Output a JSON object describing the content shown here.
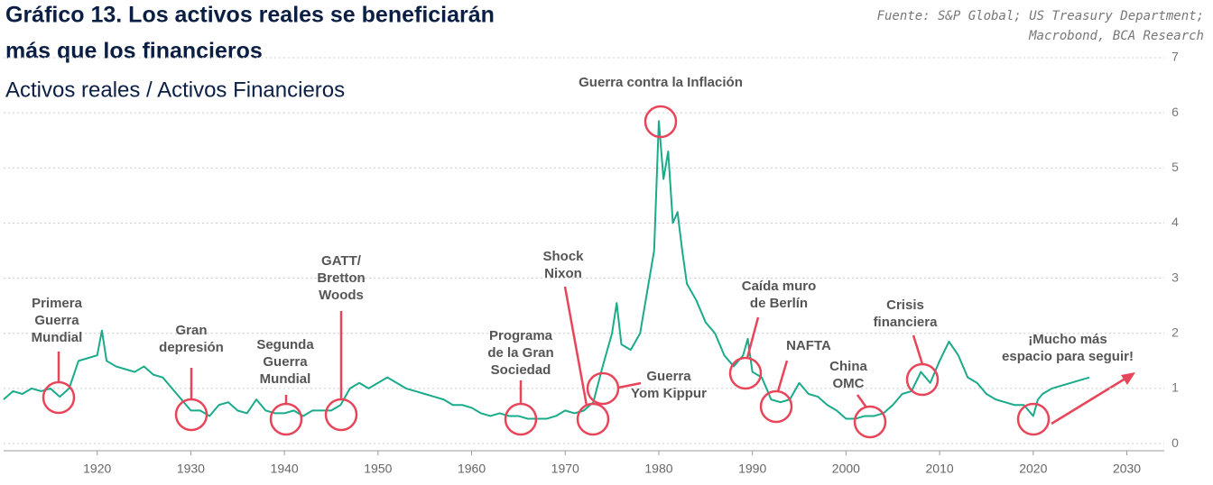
{
  "chart_data": {
    "type": "line",
    "title": [
      "Gráfico 13. Los activos reales se beneficiarán",
      "más que los financieros"
    ],
    "subtitle": "Activos reales / Activos Financieros",
    "source": [
      "Fuente:  S&P Global; US Treasury Department;",
      "Macrobond, BCA Research"
    ],
    "x": [
      1910,
      1911,
      1912,
      1913,
      1914,
      1915,
      1916,
      1917,
      1918,
      1919,
      1920,
      1920.5,
      1921,
      1922,
      1923,
      1924,
      1925,
      1926,
      1927,
      1928,
      1929,
      1930,
      1931,
      1932,
      1933,
      1934,
      1935,
      1936,
      1937,
      1938,
      1939,
      1940,
      1941,
      1942,
      1943,
      1944,
      1945,
      1946,
      1947,
      1948,
      1949,
      1950,
      1951,
      1952,
      1953,
      1954,
      1955,
      1956,
      1957,
      1958,
      1959,
      1960,
      1961,
      1962,
      1963,
      1964,
      1965,
      1966,
      1967,
      1968,
      1969,
      1970,
      1971,
      1972,
      1973,
      1974,
      1975,
      1975.5,
      1976,
      1977,
      1978,
      1979,
      1979.5,
      1980,
      1980.5,
      1981,
      1981.5,
      1982,
      1982.5,
      1983,
      1984,
      1985,
      1986,
      1987,
      1988,
      1989,
      1989.5,
      1990,
      1991,
      1992,
      1993,
      1994,
      1995,
      1996,
      1997,
      1998,
      1999,
      2000,
      2001,
      2002,
      2003,
      2004,
      2005,
      2006,
      2007,
      2008,
      2009,
      2010,
      2011,
      2012,
      2013,
      2014,
      2015,
      2016,
      2017,
      2018,
      2019,
      2020,
      2020.5,
      2021,
      2022,
      2023,
      2024,
      2025,
      2026
    ],
    "series": [
      {
        "name": "Activos reales / Activos Financieros",
        "color": "#1aab8a",
        "values": [
          0.8,
          0.95,
          0.9,
          1.0,
          0.95,
          1.0,
          0.85,
          1.0,
          1.5,
          1.55,
          1.6,
          2.05,
          1.5,
          1.4,
          1.35,
          1.3,
          1.4,
          1.25,
          1.2,
          1.0,
          0.8,
          0.6,
          0.6,
          0.5,
          0.7,
          0.75,
          0.6,
          0.55,
          0.8,
          0.6,
          0.55,
          0.55,
          0.6,
          0.5,
          0.6,
          0.6,
          0.6,
          0.7,
          1.0,
          1.1,
          1.0,
          1.1,
          1.2,
          1.1,
          1.0,
          0.95,
          0.9,
          0.85,
          0.8,
          0.7,
          0.7,
          0.65,
          0.55,
          0.5,
          0.55,
          0.5,
          0.5,
          0.45,
          0.45,
          0.45,
          0.5,
          0.6,
          0.55,
          0.6,
          0.75,
          1.4,
          2.0,
          2.55,
          1.8,
          1.7,
          2.0,
          3.0,
          3.5,
          5.85,
          4.8,
          5.3,
          4.0,
          4.2,
          3.5,
          2.9,
          2.6,
          2.2,
          2.0,
          1.6,
          1.4,
          1.6,
          1.9,
          1.3,
          1.2,
          0.8,
          0.75,
          0.8,
          1.1,
          0.9,
          0.85,
          0.7,
          0.6,
          0.45,
          0.45,
          0.5,
          0.5,
          0.55,
          0.7,
          0.9,
          0.95,
          1.3,
          1.1,
          1.5,
          1.85,
          1.6,
          1.2,
          1.1,
          0.9,
          0.8,
          0.75,
          0.7,
          0.7,
          0.5,
          0.8,
          0.9,
          1.0,
          1.05,
          1.1,
          1.15,
          1.2
        ]
      }
    ],
    "xlim": [
      1910,
      2034
    ],
    "xticks": [
      1920,
      1930,
      1940,
      1950,
      1960,
      1970,
      1980,
      1990,
      2000,
      2010,
      2020,
      2030
    ],
    "ylim": [
      -0.13,
      7
    ],
    "yticks": [
      0,
      1,
      2,
      3,
      4,
      5,
      6,
      7
    ],
    "grid": true,
    "annotations": [
      [
        "Primera",
        "Guerra",
        "Mundial"
      ],
      [
        "Gran",
        "depresión"
      ],
      [
        "Segunda",
        "Guerra",
        "Mundial"
      ],
      [
        "GATT/",
        "Bretton",
        "Woods"
      ],
      [
        "Programa",
        "de la Gran",
        "Sociedad"
      ],
      [
        "Shock",
        "Nixon"
      ],
      [
        "Guerra",
        "Yom Kippur"
      ],
      [
        "Guerra contra la Inflación"
      ],
      [
        "Caída muro",
        "de Berlín"
      ],
      [
        "NAFTA"
      ],
      [
        "China",
        "OMC"
      ],
      [
        "Crisis",
        "financiera"
      ],
      [
        "¡Mucho más",
        "espacio para seguir!"
      ]
    ]
  }
}
